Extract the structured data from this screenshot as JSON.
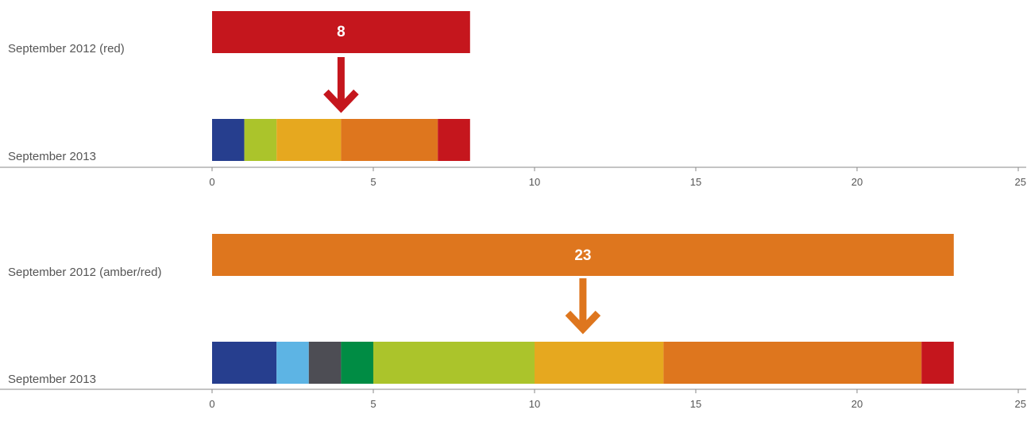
{
  "chart_data": [
    {
      "type": "bar",
      "orientation": "horizontal",
      "xlim": [
        0,
        25
      ],
      "ticks": [
        "0",
        "5",
        "10",
        "15",
        "20",
        "25"
      ],
      "grid": false,
      "rows": [
        {
          "label": "September 2012 (red)",
          "total_label": "8",
          "segments": [
            {
              "value": 8,
              "color": "#c5161d"
            }
          ]
        },
        {
          "label": "September 2013",
          "segments": [
            {
              "value": 1,
              "color": "#263e8e"
            },
            {
              "value": 1,
              "color": "#abc42b"
            },
            {
              "value": 2,
              "color": "#e6a81f"
            },
            {
              "value": 3,
              "color": "#de761e"
            },
            {
              "value": 1,
              "color": "#c5161d"
            }
          ]
        }
      ],
      "arrow_color": "#c5161d"
    },
    {
      "type": "bar",
      "orientation": "horizontal",
      "xlim": [
        0,
        25
      ],
      "ticks": [
        "0",
        "5",
        "10",
        "15",
        "20",
        "25"
      ],
      "grid": false,
      "rows": [
        {
          "label": "September 2012 (amber/red)",
          "total_label": "23",
          "segments": [
            {
              "value": 23,
              "color": "#de761e"
            }
          ]
        },
        {
          "label": "September 2013",
          "segments": [
            {
              "value": 2,
              "color": "#263e8e"
            },
            {
              "value": 1,
              "color": "#5db4e4"
            },
            {
              "value": 1,
              "color": "#4d4d54"
            },
            {
              "value": 1,
              "color": "#008c44"
            },
            {
              "value": 5,
              "color": "#abc42b"
            },
            {
              "value": 4,
              "color": "#e6a81f"
            },
            {
              "value": 8,
              "color": "#de761e"
            },
            {
              "value": 1,
              "color": "#c5161d"
            }
          ]
        }
      ],
      "arrow_color": "#de761e"
    }
  ]
}
